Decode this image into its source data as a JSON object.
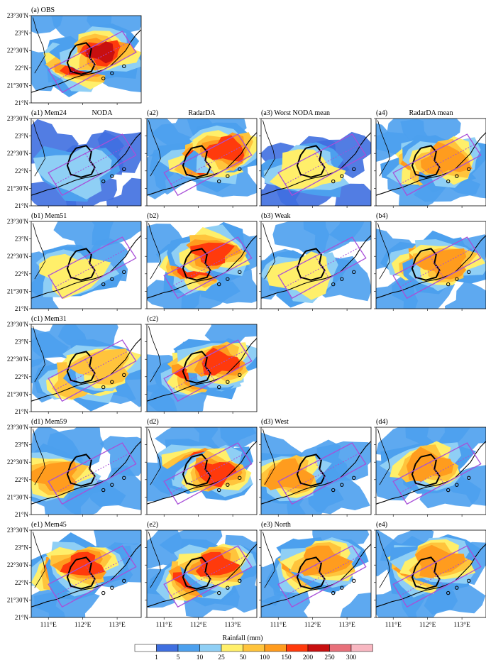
{
  "colors": {
    "levels": [
      "#ffffff",
      "#3f6fe0",
      "#4ca0ee",
      "#8fcff5",
      "#ffef6a",
      "#ffc43c",
      "#ff9c1e",
      "#ff3a0c",
      "#c80f0f",
      "#e8707a",
      "#f8b7c1"
    ],
    "box": "#a84fd8",
    "coast": "#000000"
  },
  "chart_data": {
    "type": "heatmap",
    "variable": "Rainfall (mm)",
    "colorbar": {
      "label": "Rainfall (mm)",
      "ticks": [
        "1",
        "5",
        "10",
        "25",
        "50",
        "100",
        "150",
        "200",
        "250",
        "300"
      ]
    },
    "y_ticks": [
      "23°30′N",
      "23°N",
      "22°30′N",
      "22°N",
      "21°30′N",
      "21°N"
    ],
    "x_ticks": [
      "111°E",
      "112°E",
      "113°E"
    ],
    "panels": [
      {
        "id": "a",
        "label": "(a) OBS",
        "title": "",
        "intensity": 0.7,
        "centers": [
          [
            111.95,
            22.1
          ],
          [
            112.55,
            22.45
          ]
        ]
      },
      {
        "id": "a1",
        "label": "(a1) Mem24",
        "title": "NODA",
        "intensity": 0.12,
        "centers": [
          [
            111.8,
            22.0
          ]
        ]
      },
      {
        "id": "a2",
        "label": "(a2)",
        "title": "RadarDA",
        "intensity": 0.6,
        "centers": [
          [
            112.2,
            22.3
          ],
          [
            112.8,
            22.6
          ]
        ]
      },
      {
        "id": "a3",
        "label": "(a3) Worst NODA mean",
        "title": "",
        "intensity": 0.2,
        "centers": [
          [
            111.8,
            22.0
          ]
        ]
      },
      {
        "id": "a4",
        "label": "(a4)",
        "title": "RadarDA mean",
        "intensity": 0.45,
        "centers": [
          [
            112.0,
            22.2
          ],
          [
            112.5,
            22.3
          ]
        ]
      },
      {
        "id": "b1",
        "label": "(b1) Mem51",
        "title": "",
        "intensity": 0.3,
        "centers": [
          [
            111.7,
            22.0
          ]
        ]
      },
      {
        "id": "b2",
        "label": "(b2)",
        "title": "",
        "intensity": 0.6,
        "centers": [
          [
            111.95,
            22.2
          ],
          [
            112.4,
            22.6
          ]
        ]
      },
      {
        "id": "b3",
        "label": "(b3) Weak",
        "title": "",
        "intensity": 0.3,
        "centers": [
          [
            111.7,
            21.95
          ]
        ]
      },
      {
        "id": "b4",
        "label": "(b4)",
        "title": "",
        "intensity": 0.45,
        "centers": [
          [
            112.0,
            22.3
          ],
          [
            112.5,
            22.3
          ]
        ]
      },
      {
        "id": "c1",
        "label": "(c1) Mem31",
        "title": "",
        "intensity": 0.4,
        "centers": [
          [
            111.9,
            21.9
          ],
          [
            112.6,
            22.3
          ]
        ]
      },
      {
        "id": "c2",
        "label": "(c2)",
        "title": "",
        "intensity": 0.6,
        "centers": [
          [
            112.0,
            22.1
          ],
          [
            112.6,
            22.4
          ]
        ]
      },
      {
        "id": "d1",
        "label": "(d1) Mem59",
        "title": "",
        "intensity": 0.55,
        "centers": [
          [
            111.2,
            22.1
          ]
        ]
      },
      {
        "id": "d2",
        "label": "(d2)",
        "title": "",
        "intensity": 0.6,
        "centers": [
          [
            112.0,
            22.4
          ],
          [
            112.5,
            22.2
          ]
        ]
      },
      {
        "id": "d3",
        "label": "(d3) West",
        "title": "",
        "intensity": 0.45,
        "centers": [
          [
            111.3,
            22.1
          ]
        ]
      },
      {
        "id": "d4",
        "label": "(d4)",
        "title": "",
        "intensity": 0.45,
        "centers": [
          [
            112.0,
            22.4
          ]
        ]
      },
      {
        "id": "e1",
        "label": "(e1) Mem45",
        "title": "",
        "intensity": 0.65,
        "centers": [
          [
            111.5,
            22.3
          ],
          [
            112.0,
            22.5
          ]
        ]
      },
      {
        "id": "e2",
        "label": "(e2)",
        "title": "",
        "intensity": 0.65,
        "centers": [
          [
            111.9,
            22.1
          ],
          [
            112.5,
            22.5
          ]
        ]
      },
      {
        "id": "e3",
        "label": "(e3) North",
        "title": "",
        "intensity": 0.5,
        "centers": [
          [
            111.9,
            22.4
          ],
          [
            112.3,
            22.6
          ]
        ]
      },
      {
        "id": "e4",
        "label": "(e4)",
        "title": "",
        "intensity": 0.5,
        "centers": [
          [
            111.9,
            22.4
          ],
          [
            112.3,
            22.6
          ]
        ]
      }
    ]
  }
}
